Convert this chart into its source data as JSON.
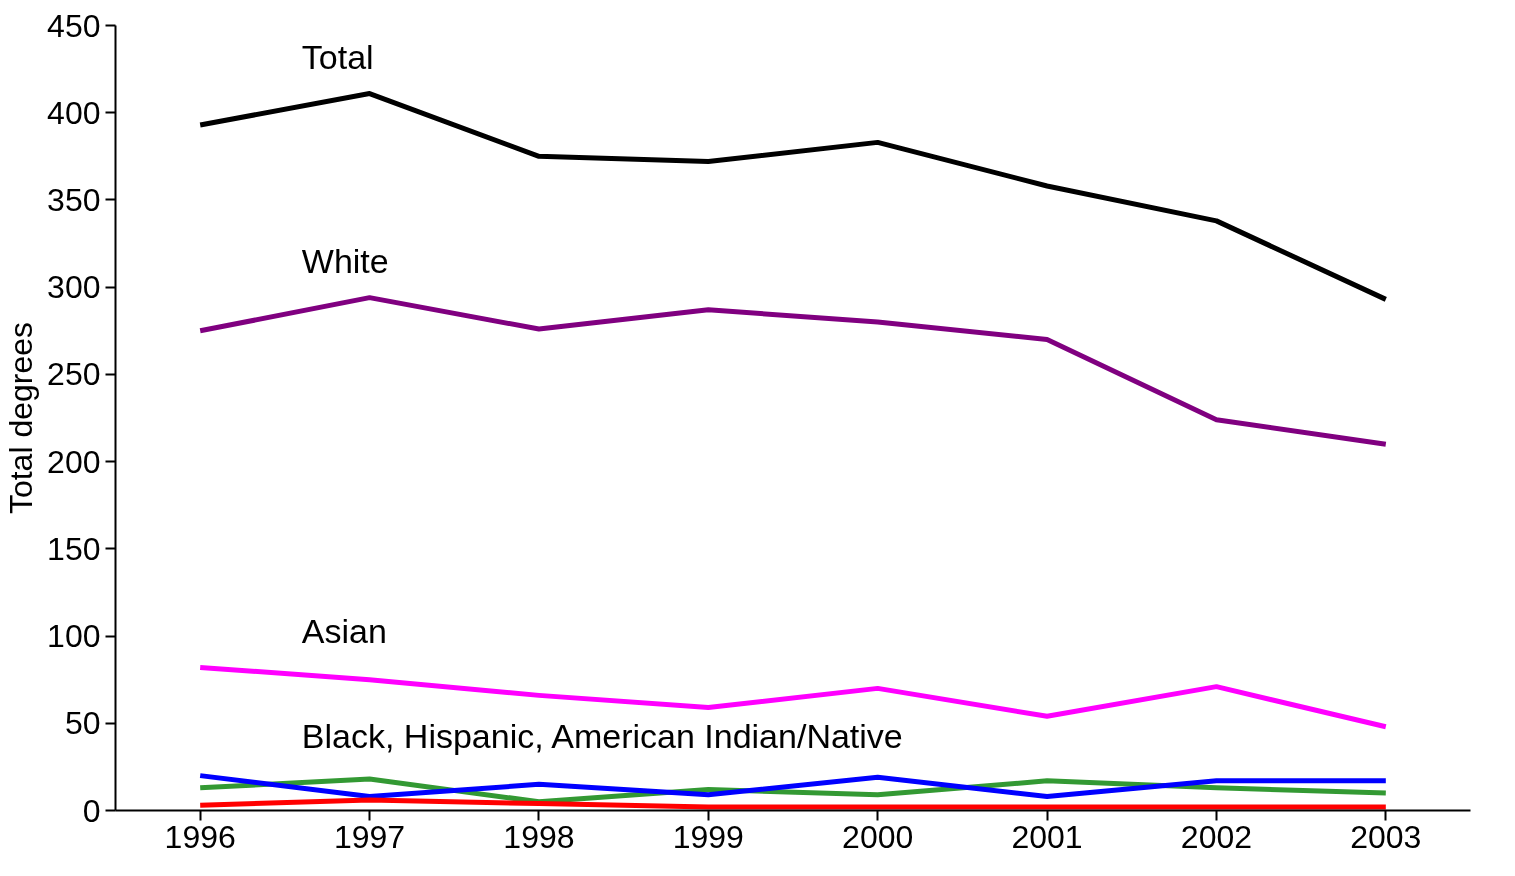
{
  "chart_data": {
    "type": "line",
    "ylabel": "Total degrees",
    "categories": [
      "1996",
      "1997",
      "1998",
      "1999",
      "2000",
      "2001",
      "2002",
      "2003"
    ],
    "ylim": [
      0,
      450
    ],
    "yticks": [
      0,
      50,
      100,
      150,
      200,
      250,
      300,
      350,
      400,
      450
    ],
    "grid": false,
    "marker": "none",
    "line_style": "solid",
    "series": [
      {
        "name": "Total",
        "color": "#000000",
        "values": [
          393,
          411,
          375,
          372,
          383,
          358,
          338,
          293
        ]
      },
      {
        "name": "White",
        "color": "#800080",
        "values": [
          275,
          294,
          276,
          287,
          280,
          270,
          224,
          210
        ]
      },
      {
        "name": "Asian",
        "color": "#ff00ff",
        "values": [
          82,
          75,
          66,
          59,
          70,
          54,
          71,
          48
        ]
      },
      {
        "color": "#339933",
        "values": [
          13,
          18,
          5,
          12,
          9,
          17,
          13,
          10
        ]
      },
      {
        "color": "#0000ff",
        "values": [
          20,
          8,
          15,
          9,
          19,
          8,
          17,
          17
        ]
      },
      {
        "color": "#ff0000",
        "values": [
          3,
          6,
          4,
          2,
          2,
          2,
          2,
          2
        ]
      }
    ],
    "annotations": [
      "Black, Hispanic, American Indian/Native"
    ]
  }
}
